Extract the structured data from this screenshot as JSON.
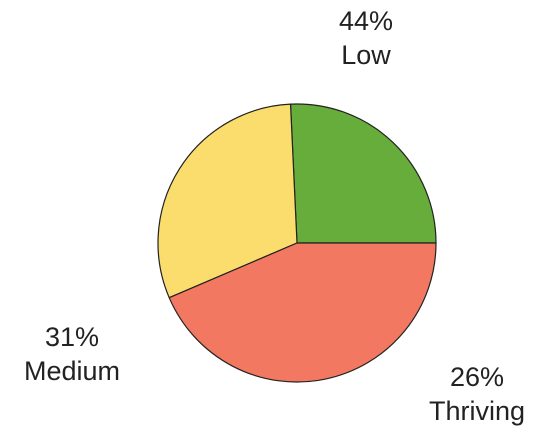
{
  "chart_data": {
    "type": "pie",
    "slices": [
      {
        "label": "Thriving",
        "percent_label": "26%",
        "value": 26,
        "color": "#66ad3c"
      },
      {
        "label": "Medium",
        "percent_label": "31%",
        "value": 31,
        "color": "#fbdd6e"
      },
      {
        "label": "Low",
        "percent_label": "44%",
        "value": 44,
        "color": "#f27861"
      }
    ],
    "slice_order": "counterclockwise from 3 o'clock",
    "labels": "outside slices, percent above category name",
    "stroke_color": "#222222"
  }
}
